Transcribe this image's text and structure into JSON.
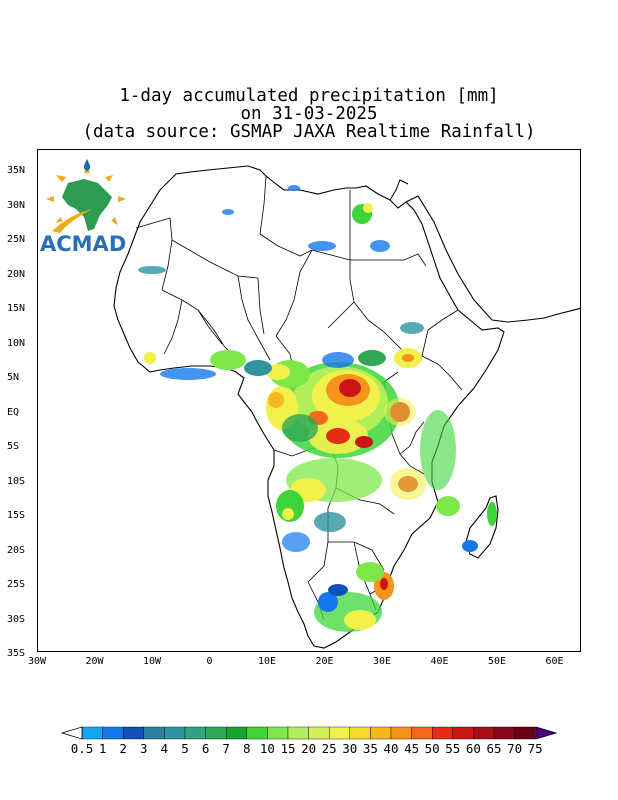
{
  "title": {
    "line1": "1-day accumulated precipitation [mm]",
    "line2": "on 31-03-2025",
    "line3": "(data source: GSMAP JAXA Realtime Rainfall)"
  },
  "logo": {
    "text": "ACMAD",
    "icon": "acmad-africa-logo"
  },
  "axes": {
    "y_ticks": [
      "35N",
      "30N",
      "25N",
      "20N",
      "15N",
      "10N",
      "5N",
      "EQ",
      "5S",
      "10S",
      "15S",
      "20S",
      "25S",
      "30S",
      "35S"
    ],
    "x_ticks": [
      "30W",
      "20W",
      "10W",
      "0",
      "10E",
      "20E",
      "30E",
      "40E",
      "50E",
      "60E"
    ]
  },
  "colorbar": {
    "labels": [
      "0.5",
      "1",
      "2",
      "3",
      "4",
      "5",
      "6",
      "7",
      "8",
      "10",
      "15",
      "20",
      "25",
      "30",
      "35",
      "40",
      "45",
      "50",
      "55",
      "60",
      "65",
      "70",
      "75"
    ],
    "colors": [
      "#11a7ee",
      "#1478ec",
      "#1250bb",
      "#2c7fa0",
      "#2f93a0",
      "#31a384",
      "#2ea854",
      "#16a330",
      "#3ed53b",
      "#7ee84a",
      "#b0ee5a",
      "#d6f05a",
      "#f2f14c",
      "#f5d92d",
      "#f6b81d",
      "#f6931a",
      "#f5671b",
      "#e82b14",
      "#cc1414",
      "#a80f14",
      "#87081a",
      "#690016",
      "#4b0081"
    ]
  }
}
